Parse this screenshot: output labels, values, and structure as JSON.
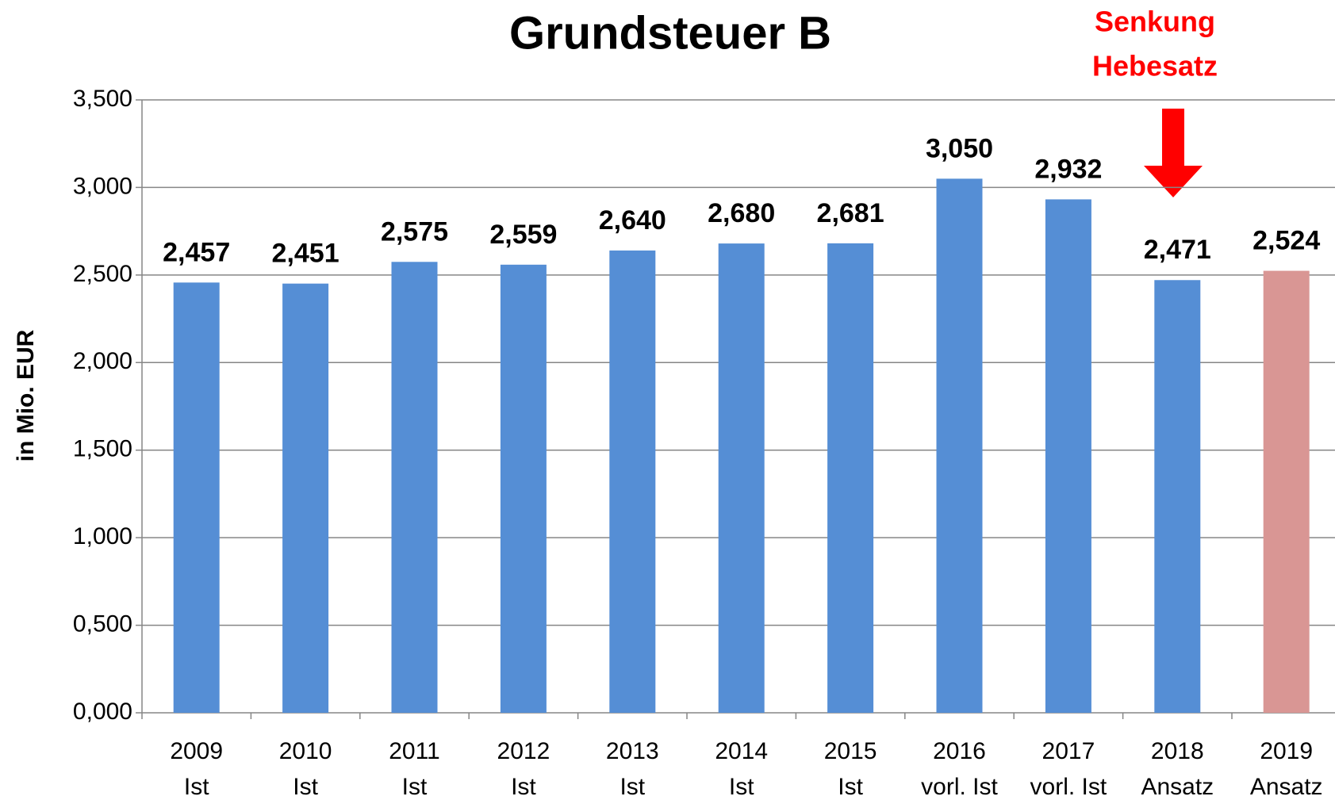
{
  "chart_data": {
    "type": "bar",
    "title": "Grundsteuer B",
    "y_label": "in Mio. EUR",
    "annotation": [
      "Senkung",
      "Hebesatz"
    ],
    "annotation_color": "#ff0000",
    "categories": [
      [
        "2009",
        "Ist"
      ],
      [
        "2010",
        "Ist"
      ],
      [
        "2011",
        "Ist"
      ],
      [
        "2012",
        "Ist"
      ],
      [
        "2013",
        "Ist"
      ],
      [
        "2014",
        "Ist"
      ],
      [
        "2015",
        "Ist"
      ],
      [
        "2016",
        "vorl. Ist"
      ],
      [
        "2017",
        "vorl. Ist"
      ],
      [
        "2018",
        "Ansatz"
      ],
      [
        "2019",
        "Ansatz"
      ]
    ],
    "values": [
      2.457,
      2.451,
      2.575,
      2.559,
      2.64,
      2.68,
      2.681,
      3.05,
      2.932,
      2.471,
      2.524
    ],
    "value_labels": [
      "2,457",
      "2,451",
      "2,575",
      "2,559",
      "2,640",
      "2,680",
      "2,681",
      "3,050",
      "2,932",
      "2,471",
      "2,524"
    ],
    "colors": [
      "#558ed5",
      "#558ed5",
      "#558ed5",
      "#558ed5",
      "#558ed5",
      "#558ed5",
      "#558ed5",
      "#558ed5",
      "#558ed5",
      "#558ed5",
      "#d99694"
    ],
    "ylim": [
      0,
      3.5
    ],
    "yticks": [
      {
        "value": 0,
        "label": "0,000"
      },
      {
        "value": 0.5,
        "label": "0,500"
      },
      {
        "value": 1,
        "label": "1,000"
      },
      {
        "value": 1.5,
        "label": "1,500"
      },
      {
        "value": 2,
        "label": "2,000"
      },
      {
        "value": 2.5,
        "label": "2,500"
      },
      {
        "value": 3,
        "label": "3,000"
      },
      {
        "value": 3.5,
        "label": "3,500"
      }
    ],
    "grid": true
  }
}
